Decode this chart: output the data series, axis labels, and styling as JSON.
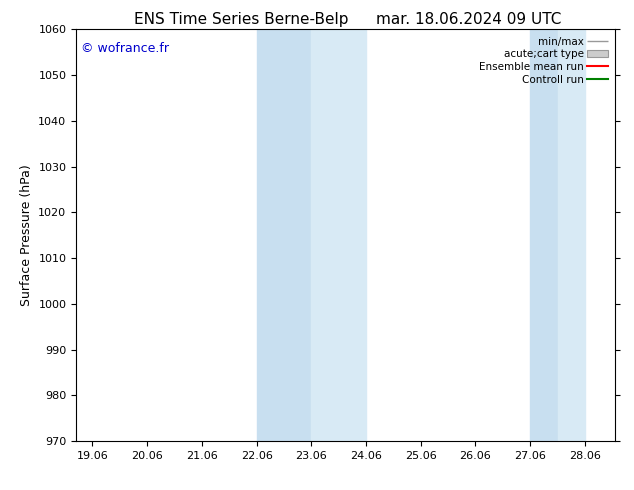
{
  "title": "ENS Time Series Berne-Belp",
  "title2": "mar. 18.06.2024 09 UTC",
  "ylabel": "Surface Pressure (hPa)",
  "ylim": [
    970,
    1060
  ],
  "yticks": [
    970,
    980,
    990,
    1000,
    1010,
    1020,
    1030,
    1040,
    1050,
    1060
  ],
  "xlim_start": 18.7,
  "xlim_end": 28.55,
  "xtick_labels": [
    "19.06",
    "20.06",
    "21.06",
    "22.06",
    "23.06",
    "24.06",
    "25.06",
    "26.06",
    "27.06",
    "28.06"
  ],
  "xtick_positions": [
    19.0,
    20.0,
    21.0,
    22.0,
    23.0,
    24.0,
    25.0,
    26.0,
    27.0,
    28.0
  ],
  "shade_band1_start": 22.0,
  "shade_band1_mid": 23.0,
  "shade_band1_end": 24.0,
  "shade_band2_start": 27.0,
  "shade_band2_mid": 27.5,
  "shade_band2_end": 28.0,
  "shade_color_dark": "#c8dff0",
  "shade_color_light": "#d8eaf5",
  "watermark": "© wofrance.fr",
  "watermark_color": "#0000cc",
  "legend_entries": [
    "min/max",
    "acute;cart type",
    "Ensemble mean run",
    "Controll run"
  ],
  "legend_line_color_minmax": "#999999",
  "legend_fill_color": "#cccccc",
  "legend_line_color_ensemble": "#ff0000",
  "legend_line_color_control": "#008000",
  "background_color": "#ffffff",
  "title_fontsize": 11,
  "tick_fontsize": 8,
  "ylabel_fontsize": 9,
  "legend_fontsize": 7.5
}
